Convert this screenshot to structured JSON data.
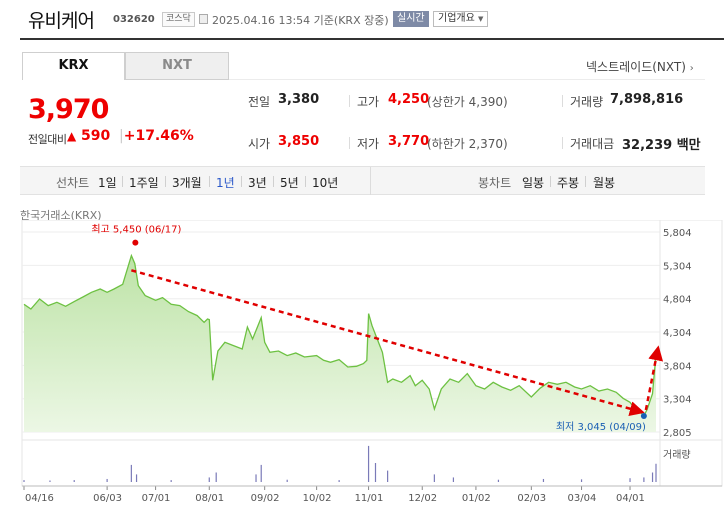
{
  "header": {
    "title": "유비케어",
    "code": "032620",
    "market": "코스닥",
    "datetime": "2025.04.16 13:54 기준(KRX 장중)",
    "realtime_label": "실시간",
    "company_label": "기업개요"
  },
  "tabs": [
    {
      "label": "KRX",
      "active": true
    },
    {
      "label": "NXT",
      "active": false
    }
  ],
  "nxt_link": "넥스트레이드(NXT)",
  "quote": {
    "price": "3,970",
    "change_label": "전일대비",
    "change_value": "590",
    "change_pct": "+17.46%",
    "prev_close_label": "전일",
    "prev_close": "3,380",
    "open_label": "시가",
    "open": "3,850",
    "high_label": "고가",
    "high": "4,250",
    "upper_limit": "(상한가 4,390)",
    "low_label": "저가",
    "low": "3,770",
    "lower_limit": "(하한가 2,370)",
    "volume_label": "거래량",
    "volume": "7,898,816",
    "amount_label": "거래대금",
    "amount": "32,239 백만"
  },
  "period_bar": {
    "line_label": "선차트",
    "line_periods": [
      "1일",
      "1주일",
      "3개월",
      "1년",
      "3년",
      "5년",
      "10년"
    ],
    "active_period": "1년",
    "candle_label": "봉차트",
    "candle_periods": [
      "일봉",
      "주봉",
      "월봉"
    ]
  },
  "chart_source": "한국거래소(KRX)",
  "chart_data": {
    "type": "area",
    "y_ticks": [
      2805,
      3304,
      3804,
      4304,
      4804,
      5304,
      5804
    ],
    "y_tick_labels": [
      "2,805",
      "3,304",
      "3,804",
      "4,304",
      "4,804",
      "5,304",
      "5,804"
    ],
    "ylim": [
      2805,
      5804
    ],
    "x_tick_labels": [
      "04/16",
      "06/03",
      "07/01",
      "08/01",
      "09/02",
      "10/02",
      "11/01",
      "12/02",
      "01/02",
      "02/03",
      "03/04",
      "04/01"
    ],
    "x_tick_dates": [
      "2024-04-16",
      "2024-06-03",
      "2024-07-01",
      "2024-08-01",
      "2024-09-02",
      "2024-10-02",
      "2024-11-01",
      "2024-12-02",
      "2025-01-02",
      "2025-02-03",
      "2025-03-04",
      "2025-04-01"
    ],
    "price_series": [
      [
        "2024-04-16",
        4720
      ],
      [
        "2024-04-20",
        4650
      ],
      [
        "2024-04-25",
        4800
      ],
      [
        "2024-04-30",
        4700
      ],
      [
        "2024-05-05",
        4750
      ],
      [
        "2024-05-10",
        4690
      ],
      [
        "2024-05-15",
        4760
      ],
      [
        "2024-05-20",
        4830
      ],
      [
        "2024-05-25",
        4900
      ],
      [
        "2024-05-30",
        4950
      ],
      [
        "2024-06-03",
        4900
      ],
      [
        "2024-06-07",
        4950
      ],
      [
        "2024-06-12",
        5020
      ],
      [
        "2024-06-17",
        5450
      ],
      [
        "2024-06-19",
        5330
      ],
      [
        "2024-06-21",
        5000
      ],
      [
        "2024-06-25",
        4850
      ],
      [
        "2024-07-01",
        4780
      ],
      [
        "2024-07-05",
        4820
      ],
      [
        "2024-07-10",
        4720
      ],
      [
        "2024-07-15",
        4700
      ],
      [
        "2024-07-20",
        4610
      ],
      [
        "2024-07-25",
        4550
      ],
      [
        "2024-07-29",
        4450
      ],
      [
        "2024-07-31",
        4500
      ],
      [
        "2024-08-01",
        4490
      ],
      [
        "2024-08-03",
        3580
      ],
      [
        "2024-08-06",
        4020
      ],
      [
        "2024-08-10",
        4150
      ],
      [
        "2024-08-15",
        4100
      ],
      [
        "2024-08-20",
        4050
      ],
      [
        "2024-08-23",
        4380
      ],
      [
        "2024-08-26",
        4200
      ],
      [
        "2024-08-31",
        4520
      ],
      [
        "2024-09-02",
        4150
      ],
      [
        "2024-09-05",
        4000
      ],
      [
        "2024-09-10",
        4020
      ],
      [
        "2024-09-15",
        3950
      ],
      [
        "2024-09-20",
        3990
      ],
      [
        "2024-09-25",
        3930
      ],
      [
        "2024-10-02",
        3950
      ],
      [
        "2024-10-06",
        3880
      ],
      [
        "2024-10-10",
        3850
      ],
      [
        "2024-10-15",
        3890
      ],
      [
        "2024-10-20",
        3780
      ],
      [
        "2024-10-25",
        3790
      ],
      [
        "2024-10-29",
        3830
      ],
      [
        "2024-10-31",
        3880
      ],
      [
        "2024-11-01",
        4580
      ],
      [
        "2024-11-03",
        4400
      ],
      [
        "2024-11-06",
        4200
      ],
      [
        "2024-11-09",
        4000
      ],
      [
        "2024-11-12",
        3550
      ],
      [
        "2024-11-15",
        3600
      ],
      [
        "2024-11-20",
        3550
      ],
      [
        "2024-11-25",
        3650
      ],
      [
        "2024-11-28",
        3500
      ],
      [
        "2024-12-02",
        3580
      ],
      [
        "2024-12-06",
        3450
      ],
      [
        "2024-12-09",
        3150
      ],
      [
        "2024-12-13",
        3450
      ],
      [
        "2024-12-18",
        3600
      ],
      [
        "2024-12-23",
        3550
      ],
      [
        "2024-12-28",
        3680
      ],
      [
        "2025-01-02",
        3500
      ],
      [
        "2025-01-07",
        3450
      ],
      [
        "2025-01-12",
        3550
      ],
      [
        "2025-01-17",
        3480
      ],
      [
        "2025-01-22",
        3430
      ],
      [
        "2025-01-27",
        3500
      ],
      [
        "2025-02-03",
        3330
      ],
      [
        "2025-02-08",
        3460
      ],
      [
        "2025-02-13",
        3550
      ],
      [
        "2025-02-18",
        3520
      ],
      [
        "2025-02-23",
        3550
      ],
      [
        "2025-02-28",
        3480
      ],
      [
        "2025-03-04",
        3450
      ],
      [
        "2025-03-09",
        3500
      ],
      [
        "2025-03-14",
        3420
      ],
      [
        "2025-03-19",
        3450
      ],
      [
        "2025-03-24",
        3400
      ],
      [
        "2025-03-28",
        3310
      ],
      [
        "2025-04-01",
        3250
      ],
      [
        "2025-04-04",
        3150
      ],
      [
        "2025-04-07",
        3100
      ],
      [
        "2025-04-09",
        3045
      ],
      [
        "2025-04-11",
        3150
      ],
      [
        "2025-04-14",
        3380
      ],
      [
        "2025-04-16",
        3970
      ]
    ],
    "high_marker": {
      "label": "최고 5,450 (06/17)",
      "date": "2024-06-17",
      "value": 5450
    },
    "low_marker": {
      "label": "최저 3,045 (04/09)",
      "date": "2025-04-09",
      "value": 3045
    },
    "volume_label": "거래량",
    "volume_series": [
      [
        "2024-04-16",
        0.05
      ],
      [
        "2024-05-01",
        0.04
      ],
      [
        "2024-05-15",
        0.05
      ],
      [
        "2024-06-03",
        0.08
      ],
      [
        "2024-06-17",
        0.45
      ],
      [
        "2024-06-20",
        0.2
      ],
      [
        "2024-07-10",
        0.05
      ],
      [
        "2024-08-01",
        0.12
      ],
      [
        "2024-08-05",
        0.25
      ],
      [
        "2024-08-28",
        0.2
      ],
      [
        "2024-08-31",
        0.45
      ],
      [
        "2024-09-15",
        0.06
      ],
      [
        "2024-10-15",
        0.05
      ],
      [
        "2024-11-01",
        0.95
      ],
      [
        "2024-11-05",
        0.5
      ],
      [
        "2024-11-12",
        0.3
      ],
      [
        "2024-12-09",
        0.2
      ],
      [
        "2024-12-20",
        0.12
      ],
      [
        "2025-01-15",
        0.06
      ],
      [
        "2025-02-10",
        0.08
      ],
      [
        "2025-03-04",
        0.07
      ],
      [
        "2025-04-01",
        0.1
      ],
      [
        "2025-04-09",
        0.12
      ],
      [
        "2025-04-14",
        0.25
      ],
      [
        "2025-04-16",
        0.48
      ]
    ],
    "colors": {
      "line": "#6dc142",
      "fill_top": "#bde3a6",
      "fill_bottom": "#ecf7e5",
      "high": "#e00000",
      "low": "#1a5fb4",
      "arrow": "#e00000",
      "volume": "#7a7ab8"
    }
  }
}
